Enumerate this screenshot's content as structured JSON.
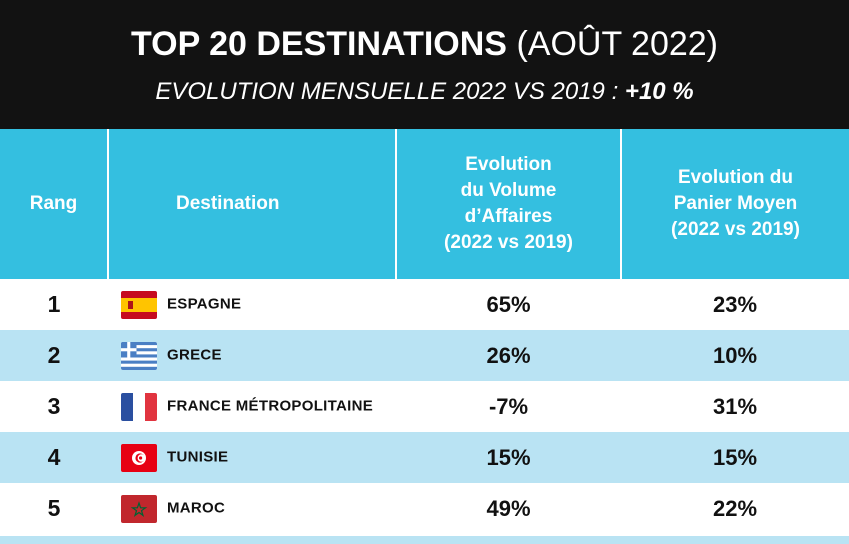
{
  "header": {
    "title_bold": "TOP 20 DESTINATIONS",
    "title_light": "(AOÛT 2022)",
    "subtitle_text": "EVOLUTION MENSUELLE 2022 VS 2019 :",
    "subtitle_value": "+10 %"
  },
  "table": {
    "headers": {
      "rang": "Rang",
      "destination": "Destination",
      "volume": [
        "Evolution",
        "du Volume",
        "d’Affaires",
        "(2022 vs 2019)"
      ],
      "panier": [
        "Evolution du",
        "Panier Moyen",
        "(2022 vs 2019)"
      ]
    },
    "rows": [
      {
        "rank": "1",
        "flag": "spain-flag-icon",
        "destination": "ESPAGNE",
        "volume": "65%",
        "panier": "23%"
      },
      {
        "rank": "2",
        "flag": "greece-flag-icon",
        "destination": "GRECE",
        "volume": "26%",
        "panier": "10%"
      },
      {
        "rank": "3",
        "flag": "france-flag-icon",
        "destination": "FRANCE MÉTROPOLITAINE",
        "volume": "-7%",
        "panier": "31%"
      },
      {
        "rank": "4",
        "flag": "tunisia-flag-icon",
        "destination": "TUNISIE",
        "volume": "15%",
        "panier": "15%"
      },
      {
        "rank": "5",
        "flag": "morocco-flag-icon",
        "destination": "MAROC",
        "volume": "49%",
        "panier": "22%"
      }
    ]
  },
  "colors": {
    "header_bg": "#121212",
    "table_header_bg": "#34bfe0",
    "row_alt_bg": "#b9e3f3"
  }
}
